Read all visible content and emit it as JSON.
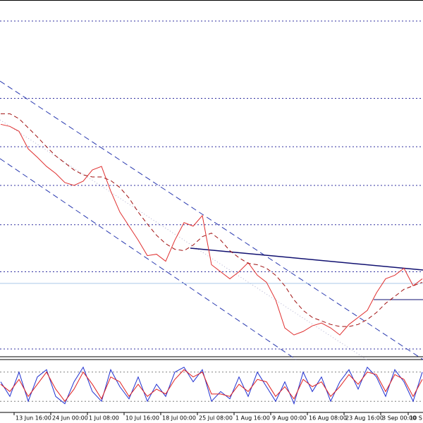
{
  "chart_data": [
    {
      "type": "price",
      "categories": [
        null,
        null,
        null,
        "13 Jun 16:00",
        null,
        null,
        null,
        "24 Jun 00:00",
        null,
        null,
        null,
        "1 Jul 08:00",
        null,
        null,
        null,
        "10 Jul 16:00",
        null,
        null,
        null,
        "18 Jul 00:00",
        null,
        null,
        null,
        "25 Jul 08:00",
        null,
        null,
        null,
        "1 Aug 16:00",
        null,
        null,
        null,
        "9 Aug 00:00",
        null,
        null,
        null,
        "16 Aug 08:00",
        null,
        null,
        null,
        "23 Aug 16:00",
        null,
        null,
        null,
        "3 Sep 00:00",
        null,
        null,
        "10 S"
      ],
      "ylim": [
        0,
        505
      ],
      "levels": [
        477,
        367,
        298,
        243,
        187,
        120,
        10
      ],
      "level_color": "#3030a0",
      "series": [
        {
          "color": "#e03030",
          "values": [
            330,
            327,
            320,
            295,
            283,
            270,
            260,
            247,
            243,
            249,
            265,
            270,
            235,
            205,
            185,
            165,
            143,
            145,
            135,
            165,
            190,
            185,
            200,
            130,
            120,
            110,
            120,
            133,
            115,
            105,
            80,
            40,
            30,
            35,
            43,
            47,
            40,
            30,
            45,
            55,
            65,
            90,
            110,
            115,
            125,
            100,
            110
          ]
        },
        {
          "color": "#a01010",
          "dashed": true,
          "values": [
            345,
            345,
            338,
            325,
            312,
            298,
            285,
            275,
            265,
            258,
            255,
            255,
            250,
            240,
            225,
            205,
            188,
            172,
            160,
            152,
            150,
            158,
            170,
            175,
            165,
            150,
            140,
            132,
            130,
            125,
            115,
            100,
            80,
            65,
            55,
            50,
            45,
            42,
            42,
            45,
            52,
            62,
            75,
            85,
            95,
            100,
            105
          ]
        }
      ]
    },
    {
      "type": "oscillator",
      "ylim": [
        0,
        100
      ],
      "levels": [
        20,
        80
      ],
      "level_color": "#808080",
      "series": [
        {
          "color": "#2030d0",
          "values": [
            60,
            30,
            80,
            20,
            70,
            85,
            30,
            15,
            60,
            90,
            40,
            20,
            85,
            50,
            25,
            70,
            20,
            55,
            30,
            80,
            90,
            60,
            85,
            20,
            40,
            25,
            70,
            30,
            80,
            50,
            20,
            60,
            15,
            80,
            40,
            70,
            20,
            60,
            85,
            45,
            90,
            70,
            30,
            85,
            60,
            20,
            80
          ]
        },
        {
          "color": "#e02020",
          "values": [
            55,
            40,
            65,
            30,
            55,
            80,
            45,
            20,
            45,
            80,
            55,
            25,
            70,
            60,
            30,
            55,
            30,
            45,
            35,
            65,
            85,
            70,
            80,
            35,
            35,
            30,
            55,
            40,
            65,
            60,
            30,
            50,
            25,
            65,
            50,
            60,
            30,
            50,
            75,
            55,
            80,
            75,
            40,
            75,
            65,
            30,
            65
          ]
        }
      ]
    }
  ]
}
